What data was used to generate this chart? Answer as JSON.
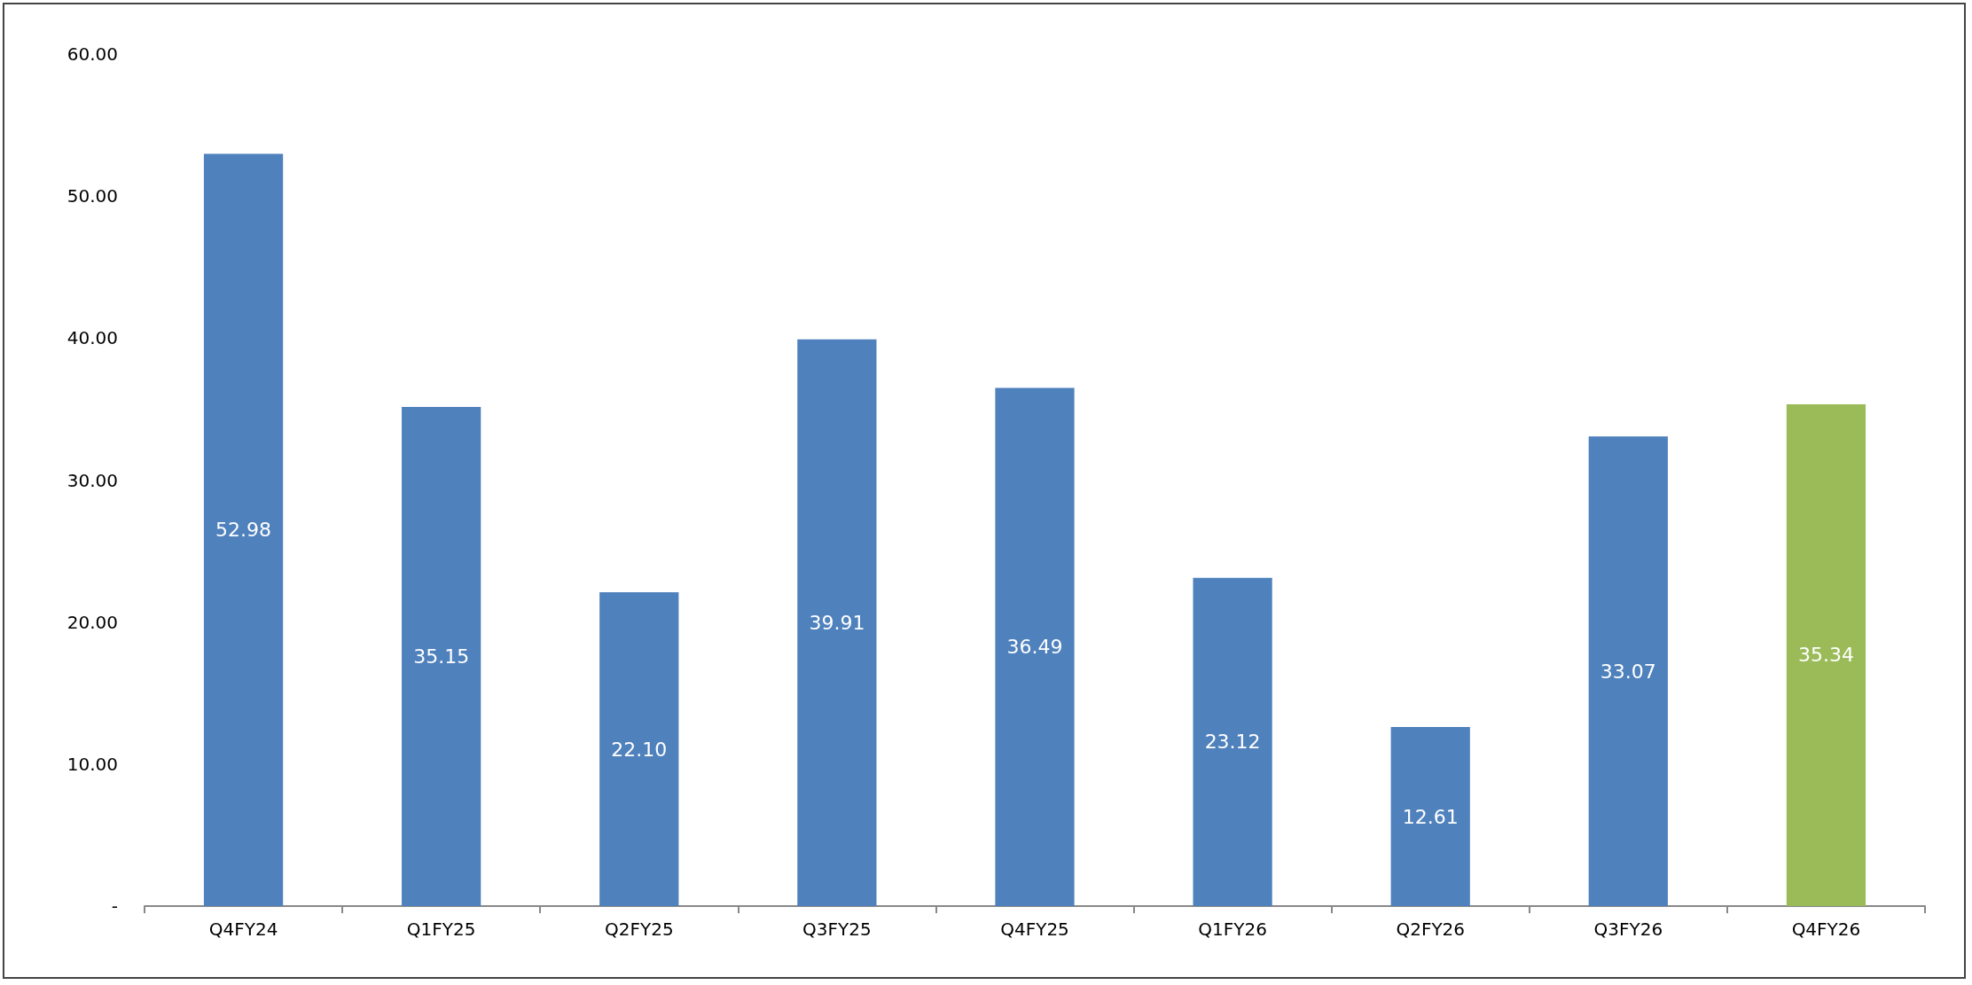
{
  "chart_data": {
    "type": "bar",
    "categories": [
      "Q4FY24",
      "Q1FY25",
      "Q2FY25",
      "Q3FY25",
      "Q4FY25",
      "Q1FY26",
      "Q2FY26",
      "Q3FY26",
      "Q4FY26"
    ],
    "values": [
      52.98,
      35.15,
      22.1,
      39.91,
      36.49,
      23.12,
      12.61,
      33.07,
      35.34
    ],
    "colors": [
      "#4f81bd",
      "#4f81bd",
      "#4f81bd",
      "#4f81bd",
      "#4f81bd",
      "#4f81bd",
      "#4f81bd",
      "#4f81bd",
      "#9bbb59"
    ],
    "value_labels": [
      "52.98",
      "35.15",
      "22.10",
      "39.91",
      "36.49",
      "23.12",
      "12.61",
      "33.07",
      "35.34"
    ],
    "ylim": [
      0,
      60
    ],
    "yticks": [
      {
        "value": 0,
        "label": "-"
      },
      {
        "value": 10,
        "label": "10.00"
      },
      {
        "value": 20,
        "label": "20.00"
      },
      {
        "value": 30,
        "label": "30.00"
      },
      {
        "value": 40,
        "label": "40.00"
      },
      {
        "value": 50,
        "label": "50.00"
      },
      {
        "value": 60,
        "label": "60.00"
      }
    ],
    "grid": false
  }
}
